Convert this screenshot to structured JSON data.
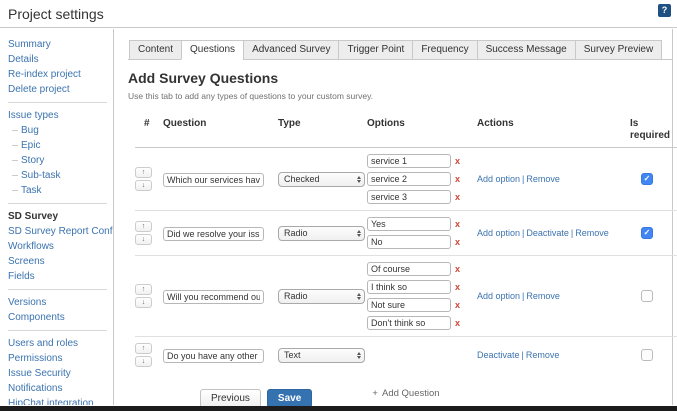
{
  "header": {
    "title": "Project settings"
  },
  "icons": {
    "help": "?",
    "up_arrow": "↑",
    "down_arrow": "↓",
    "remove_x": "x",
    "check": "✓",
    "plus": "+"
  },
  "colors": {
    "link_blue": "#3b73af",
    "save_button_blue": "#3572b0",
    "remove_x_red": "#d04437",
    "checkbox_checked_blue": "#4285f4",
    "help_icon_navy": "#205081"
  },
  "sidebar": {
    "groups": [
      {
        "items": [
          {
            "label": "Summary"
          },
          {
            "label": "Details"
          },
          {
            "label": "Re-index project"
          },
          {
            "label": "Delete project"
          }
        ]
      },
      {
        "items": [
          {
            "label": "Issue types"
          },
          {
            "label": "Bug"
          },
          {
            "label": "Epic"
          },
          {
            "label": "Story"
          },
          {
            "label": "Sub-task"
          },
          {
            "label": "Task"
          }
        ]
      },
      {
        "items": [
          {
            "label": "SD Survey"
          },
          {
            "label": "SD Survey Report Config"
          },
          {
            "label": "Workflows"
          },
          {
            "label": "Screens"
          },
          {
            "label": "Fields"
          }
        ]
      },
      {
        "items": [
          {
            "label": "Versions"
          },
          {
            "label": "Components"
          }
        ]
      },
      {
        "items": [
          {
            "label": "Users and roles"
          },
          {
            "label": "Permissions"
          },
          {
            "label": "Issue Security"
          },
          {
            "label": "Notifications"
          },
          {
            "label": "HipChat integration"
          }
        ]
      }
    ]
  },
  "tabs": [
    {
      "label": "Content"
    },
    {
      "label": "Questions"
    },
    {
      "label": "Advanced Survey"
    },
    {
      "label": "Trigger Point"
    },
    {
      "label": "Frequency"
    },
    {
      "label": "Success Message"
    },
    {
      "label": "Survey Preview"
    }
  ],
  "section": {
    "title": "Add Survey Questions",
    "subtitle": "Use this tab to add any types of questions to your custom survey."
  },
  "table": {
    "headers": {
      "num": "#",
      "question": "Question",
      "type": "Type",
      "options": "Options",
      "actions": "Actions",
      "required": "Is required"
    },
    "separator": "|",
    "rows": [
      {
        "question": "Which our services have you u",
        "type": "Checked",
        "options": [
          "service 1",
          "service 2",
          "service 3"
        ],
        "actions": [
          "Add option",
          "Remove"
        ],
        "required": true
      },
      {
        "question": "Did we resolve your issue?",
        "type": "Radio",
        "options": [
          "Yes",
          "No"
        ],
        "actions": [
          "Add option",
          "Deactivate",
          "Remove"
        ],
        "required": true
      },
      {
        "question": "Will you recommend our servi",
        "type": "Radio",
        "options": [
          "Of course",
          "I think so",
          "Not sure",
          "Don't think so"
        ],
        "actions": [
          "Add option",
          "Remove"
        ],
        "required": false
      },
      {
        "question": "Do you have any other feedba",
        "type": "Text",
        "options": [],
        "actions": [
          "Deactivate",
          "Remove"
        ],
        "required": false
      }
    ]
  },
  "add_question": {
    "label": "Add Question"
  },
  "footer": {
    "previous": "Previous",
    "save": "Save"
  }
}
